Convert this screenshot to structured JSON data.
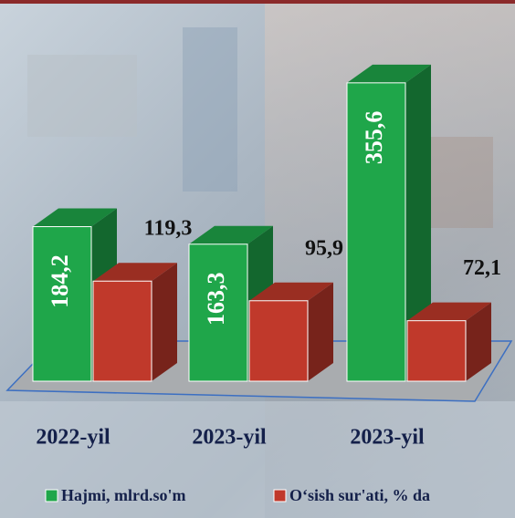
{
  "chart_data": {
    "type": "bar3d",
    "categories": [
      "2022-yil",
      "2023-yil",
      "2023-yil"
    ],
    "series": [
      {
        "name": "Hajmi, mlrd.so'm",
        "color": "#1fa64a",
        "values": [
          184.2,
          163.3,
          355.6
        ],
        "value_labels": [
          "184,2",
          "163,3",
          "355,6"
        ]
      },
      {
        "name": "O‘sish sur'ati, % da",
        "color": "#c0392b",
        "values": [
          119.3,
          95.9,
          72.1
        ],
        "value_labels": [
          "119,3",
          "95,9",
          "72,1"
        ]
      }
    ]
  }
}
